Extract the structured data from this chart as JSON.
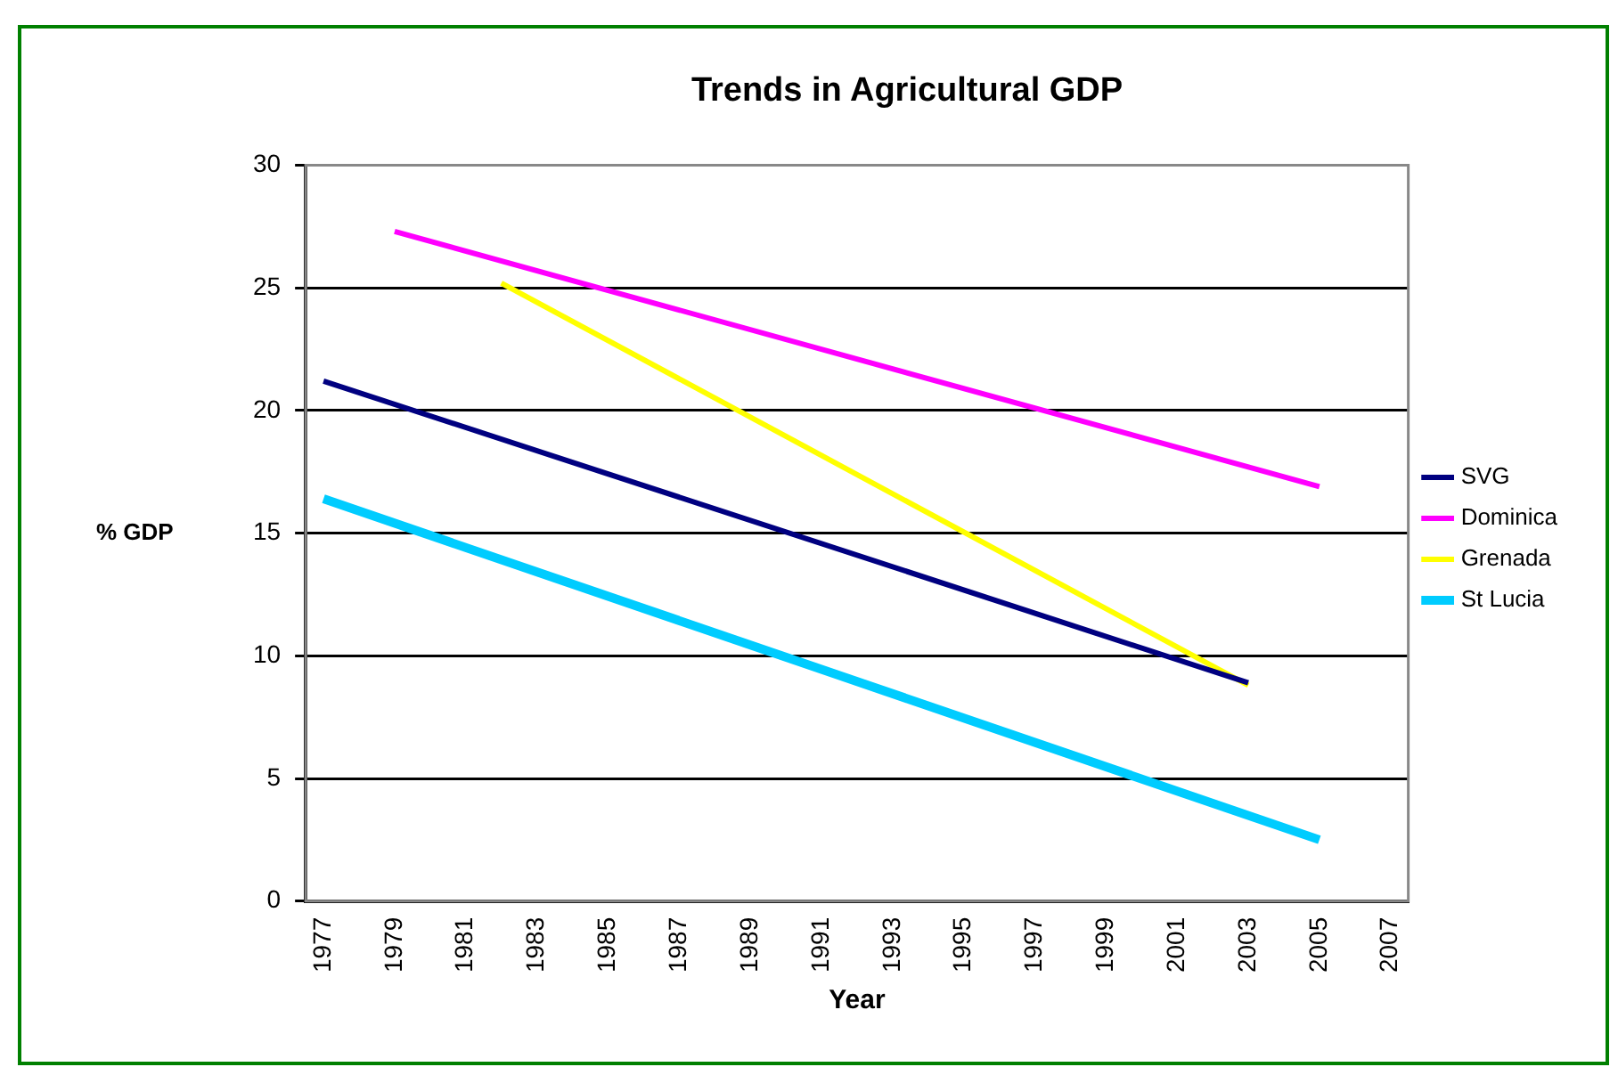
{
  "chart_data": {
    "type": "line",
    "title": "Trends in Agricultural GDP",
    "xlabel": "Year",
    "ylabel": "% GDP",
    "xlim": [
      1976.5,
      2007.5
    ],
    "xticks": [
      1977,
      1979,
      1981,
      1983,
      1985,
      1987,
      1989,
      1991,
      1993,
      1995,
      1997,
      1999,
      2001,
      2003,
      2005,
      2007
    ],
    "ylim": [
      0,
      30
    ],
    "yticks": [
      0,
      5,
      10,
      15,
      20,
      25,
      30
    ],
    "grid": "y",
    "legend": "right",
    "marker": "none",
    "line_style": "solid",
    "series": [
      {
        "name": "SVG",
        "color": "#000080",
        "x": [
          1977,
          2003
        ],
        "values": [
          21.2,
          8.9
        ]
      },
      {
        "name": "Dominica",
        "color": "#ff00ff",
        "x": [
          1979,
          2005
        ],
        "values": [
          27.3,
          16.9
        ]
      },
      {
        "name": "Grenada",
        "color": "#ffff00",
        "x": [
          1982,
          2003
        ],
        "values": [
          25.2,
          8.8
        ]
      },
      {
        "name": "St Lucia",
        "color": "#00ccff",
        "x": [
          1977,
          2005
        ],
        "values": [
          16.4,
          2.5
        ]
      }
    ]
  }
}
